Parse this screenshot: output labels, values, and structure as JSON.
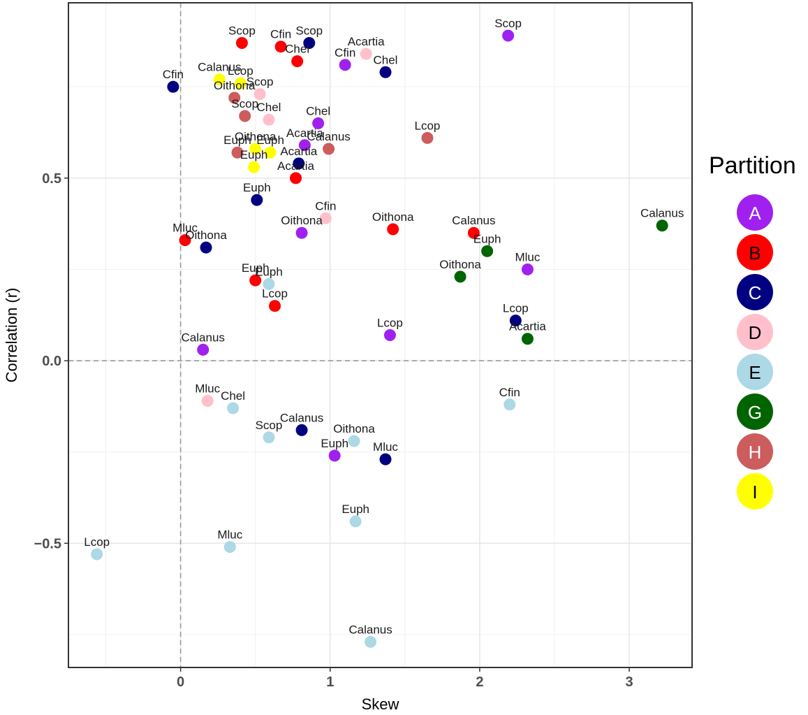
{
  "chart_data": {
    "type": "scatter",
    "xlabel": "Skew",
    "ylabel": "Correlation (r)",
    "xlim": [
      -0.75,
      3.42
    ],
    "ylim": [
      -0.84,
      0.98
    ],
    "x_ticks": [
      0,
      1,
      2,
      3
    ],
    "y_ticks": [
      -0.5,
      0.0,
      0.5
    ],
    "x_tick_labels": [
      "0",
      "1",
      "2",
      "3"
    ],
    "y_tick_labels": [
      "−0.5",
      "0.0",
      "0.5"
    ],
    "reference_lines": {
      "x": 0,
      "y": 0,
      "style": "dashed"
    },
    "grid": true,
    "legend": {
      "title": "Partition",
      "position": "right",
      "entries": [
        {
          "key": "A",
          "color": "#A020F0",
          "text_color": "#ffffff"
        },
        {
          "key": "B",
          "color": "#FF0000",
          "text_color": "#000000"
        },
        {
          "key": "C",
          "color": "#000080",
          "text_color": "#ffffff"
        },
        {
          "key": "D",
          "color": "#FFC0CB",
          "text_color": "#000000"
        },
        {
          "key": "E",
          "color": "#ADD8E6",
          "text_color": "#000000"
        },
        {
          "key": "G",
          "color": "#006400",
          "text_color": "#ffffff"
        },
        {
          "key": "H",
          "color": "#CD5C5C",
          "text_color": "#ffffff"
        },
        {
          "key": "I",
          "color": "#FFFF00",
          "text_color": "#000000"
        }
      ]
    },
    "series": [
      {
        "partition": "A",
        "points": [
          {
            "label": "Scop",
            "x": 2.19,
            "y": 0.89
          },
          {
            "label": "Cfin",
            "x": 1.1,
            "y": 0.81
          },
          {
            "label": "Chel",
            "x": 0.92,
            "y": 0.65
          },
          {
            "label": "Acartia",
            "x": 0.83,
            "y": 0.59
          },
          {
            "label": "Oithona",
            "x": 0.81,
            "y": 0.35
          },
          {
            "label": "Mluc",
            "x": 2.32,
            "y": 0.25
          },
          {
            "label": "Lcop",
            "x": 1.4,
            "y": 0.07
          },
          {
            "label": "Calanus",
            "x": 0.15,
            "y": 0.03
          },
          {
            "label": "Euph",
            "x": 1.03,
            "y": -0.26
          }
        ]
      },
      {
        "partition": "B",
        "points": [
          {
            "label": "Scop",
            "x": 0.41,
            "y": 0.87
          },
          {
            "label": "Cfin",
            "x": 0.67,
            "y": 0.86
          },
          {
            "label": "Chel",
            "x": 0.78,
            "y": 0.82
          },
          {
            "label": "Acartia",
            "x": 0.77,
            "y": 0.5
          },
          {
            "label": "Oithona",
            "x": 1.42,
            "y": 0.36
          },
          {
            "label": "Calanus",
            "x": 1.96,
            "y": 0.35
          },
          {
            "label": "Mluc",
            "x": 0.03,
            "y": 0.33
          },
          {
            "label": "Euph",
            "x": 0.5,
            "y": 0.22
          },
          {
            "label": "Lcop",
            "x": 0.63,
            "y": 0.15
          }
        ]
      },
      {
        "partition": "C",
        "points": [
          {
            "label": "Scop",
            "x": 0.86,
            "y": 0.87
          },
          {
            "label": "Chel",
            "x": 1.37,
            "y": 0.79
          },
          {
            "label": "Cfin",
            "x": -0.05,
            "y": 0.75
          },
          {
            "label": "Acartia",
            "x": 0.79,
            "y": 0.54
          },
          {
            "label": "Euph",
            "x": 0.51,
            "y": 0.44
          },
          {
            "label": "Oithona",
            "x": 0.17,
            "y": 0.31
          },
          {
            "label": "Lcop",
            "x": 2.24,
            "y": 0.11
          },
          {
            "label": "Calanus",
            "x": 0.81,
            "y": -0.19
          },
          {
            "label": "Mluc",
            "x": 1.37,
            "y": -0.27
          }
        ]
      },
      {
        "partition": "D",
        "points": [
          {
            "label": "Acartia",
            "x": 1.24,
            "y": 0.84
          },
          {
            "label": "Scop",
            "x": 0.53,
            "y": 0.73
          },
          {
            "label": "Chel",
            "x": 0.59,
            "y": 0.66
          },
          {
            "label": "Cfin",
            "x": 0.97,
            "y": 0.39
          },
          {
            "label": "Mluc",
            "x": 0.18,
            "y": -0.11
          }
        ]
      },
      {
        "partition": "E",
        "points": [
          {
            "label": "Euph",
            "x": 0.59,
            "y": 0.21
          },
          {
            "label": "Cfin",
            "x": 2.2,
            "y": -0.12
          },
          {
            "label": "Chel",
            "x": 0.35,
            "y": -0.13
          },
          {
            "label": "Scop",
            "x": 0.59,
            "y": -0.21
          },
          {
            "label": "Oithona",
            "x": 1.16,
            "y": -0.22
          },
          {
            "label": "Euph",
            "x": 1.17,
            "y": -0.44
          },
          {
            "label": "Mluc",
            "x": 0.33,
            "y": -0.51
          },
          {
            "label": "Lcop",
            "x": -0.56,
            "y": -0.53
          },
          {
            "label": "Calanus",
            "x": 1.27,
            "y": -0.77
          }
        ]
      },
      {
        "partition": "G",
        "points": [
          {
            "label": "Calanus",
            "x": 3.22,
            "y": 0.37
          },
          {
            "label": "Euph",
            "x": 2.05,
            "y": 0.3
          },
          {
            "label": "Oithona",
            "x": 1.87,
            "y": 0.23
          },
          {
            "label": "Acartia",
            "x": 2.32,
            "y": 0.06
          }
        ]
      },
      {
        "partition": "H",
        "points": [
          {
            "label": "Oithona",
            "x": 0.36,
            "y": 0.72
          },
          {
            "label": "Scop",
            "x": 0.43,
            "y": 0.67
          },
          {
            "label": "Lcop",
            "x": 1.65,
            "y": 0.61
          },
          {
            "label": "Euph",
            "x": 0.38,
            "y": 0.57
          },
          {
            "label": "Calanus",
            "x": 0.99,
            "y": 0.58
          }
        ]
      },
      {
        "partition": "I",
        "points": [
          {
            "label": "Calanus",
            "x": 0.26,
            "y": 0.77
          },
          {
            "label": "Lcop",
            "x": 0.4,
            "y": 0.76
          },
          {
            "label": "Oithona",
            "x": 0.5,
            "y": 0.58
          },
          {
            "label": "Euph",
            "x": 0.6,
            "y": 0.57
          },
          {
            "label": "Euph",
            "x": 0.49,
            "y": 0.53
          }
        ]
      }
    ]
  }
}
